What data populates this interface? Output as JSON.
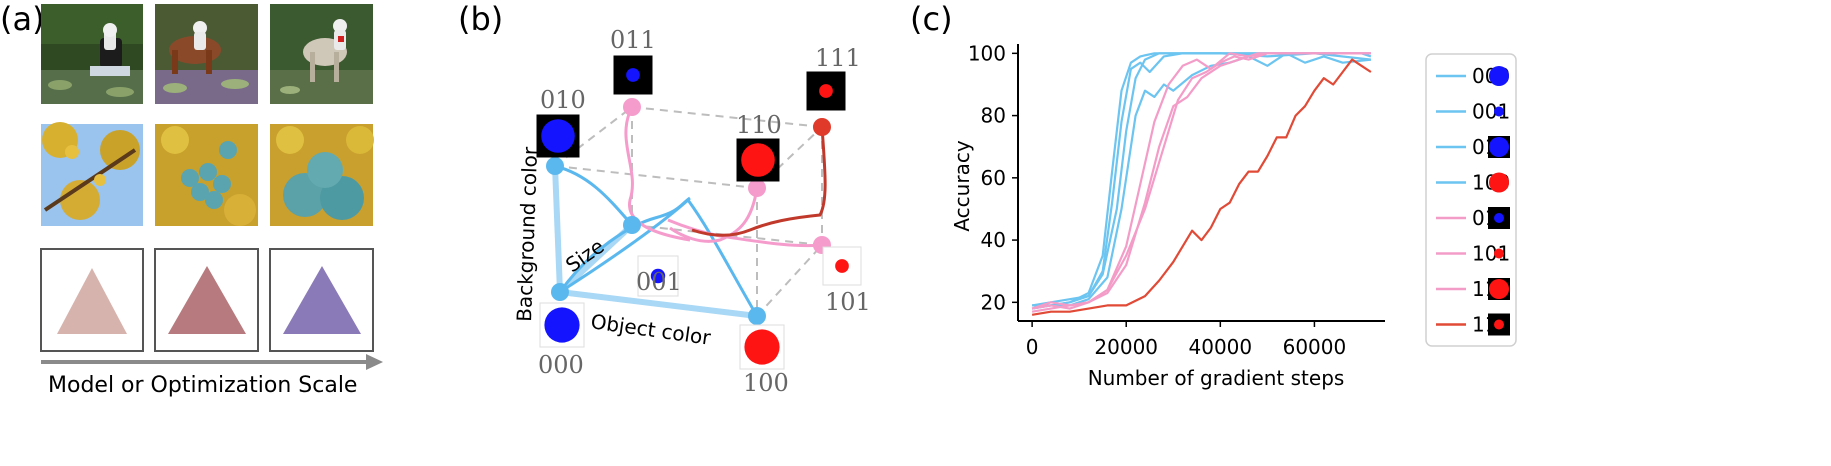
{
  "panels": {
    "a": {
      "label": "(a)",
      "caption": "Model or Optimization Scale",
      "rows": [
        {
          "subject": "astronaut riding horse in pond",
          "colors": [
            "#3c5a2e",
            "#4f6f3a",
            "#5a7a3f"
          ]
        },
        {
          "subject": "blue apples on yellow-leaf tree",
          "colors": [
            "#d9b23a",
            "#c9a23a",
            "#c39a30"
          ]
        },
        {
          "subject": "triangle",
          "colors": [
            "#c99a92",
            "#b77a7e",
            "#8a7ab8"
          ]
        }
      ]
    },
    "b": {
      "label": "(b)",
      "axes": {
        "background": "Background color",
        "size": "Size",
        "object": "Object color"
      },
      "nodes": [
        {
          "code": "000",
          "color": "#5bb8ee",
          "obj": "#1414ff",
          "bg": "#ffffff",
          "big": true
        },
        {
          "code": "001",
          "color": "#5bb8ee",
          "obj": "#1414ff",
          "bg": "#ffffff",
          "big": false
        },
        {
          "code": "010",
          "color": "#5bb8ee",
          "obj": "#1414ff",
          "bg": "#000000",
          "big": true
        },
        {
          "code": "011",
          "color": "#f59ccc",
          "obj": "#1414ff",
          "bg": "#000000",
          "big": false
        },
        {
          "code": "100",
          "color": "#5bb8ee",
          "obj": "#ff1414",
          "bg": "#ffffff",
          "big": true
        },
        {
          "code": "101",
          "color": "#f59ccc",
          "obj": "#ff1414",
          "bg": "#ffffff",
          "big": false
        },
        {
          "code": "110",
          "color": "#f59ccc",
          "obj": "#ff1414",
          "bg": "#000000",
          "big": true
        },
        {
          "code": "111",
          "color": "#e03a2a",
          "obj": "#ff1414",
          "bg": "#000000",
          "big": false
        }
      ]
    },
    "c": {
      "label": "(c)",
      "legend": [
        "000",
        "001",
        "010",
        "100",
        "011",
        "101",
        "110",
        "111"
      ]
    }
  },
  "chart_data": {
    "type": "line",
    "title": "",
    "xlabel": "Number of gradient steps",
    "ylabel": "Accuracy",
    "xlim": [
      -3000,
      75000
    ],
    "ylim": [
      14,
      103
    ],
    "xticks": [
      0,
      20000,
      40000,
      60000
    ],
    "yticks": [
      20,
      40,
      60,
      80,
      100
    ],
    "grid": false,
    "legend_position": "right-outside",
    "series": [
      {
        "name": "000",
        "color": "#6cc4f0",
        "x": [
          0,
          4000,
          8000,
          12000,
          15000,
          17000,
          19000,
          21000,
          23000,
          26000,
          30000,
          40000,
          50000,
          60000,
          70000,
          72000
        ],
        "y": [
          19,
          19,
          20,
          23,
          35,
          62,
          88,
          97,
          99,
          100,
          100,
          100,
          100,
          100,
          100,
          99
        ]
      },
      {
        "name": "001",
        "color": "#6cc4f0",
        "x": [
          0,
          4000,
          8000,
          12000,
          15000,
          17000,
          19000,
          21000,
          23000,
          25000,
          28000,
          32000,
          40000,
          50000,
          60000,
          72000
        ],
        "y": [
          18,
          19,
          20,
          22,
          30,
          52,
          78,
          95,
          97,
          94,
          99,
          100,
          100,
          99,
          100,
          98
        ]
      },
      {
        "name": "010",
        "color": "#6cc4f0",
        "x": [
          0,
          4000,
          8000,
          12000,
          15000,
          18000,
          20000,
          22000,
          24000,
          27000,
          30000,
          40000,
          50000,
          60000,
          72000
        ],
        "y": [
          19,
          20,
          21,
          22,
          29,
          50,
          75,
          92,
          98,
          100,
          100,
          100,
          100,
          100,
          100
        ]
      },
      {
        "name": "100",
        "color": "#6cc4f0",
        "x": [
          0,
          4000,
          8000,
          12000,
          16000,
          19000,
          22000,
          24000,
          26000,
          28000,
          30000,
          34000,
          38000,
          42000,
          46000,
          50000,
          54000,
          58000,
          62000,
          66000,
          72000
        ],
        "y": [
          18,
          19,
          19,
          21,
          28,
          50,
          80,
          88,
          86,
          90,
          88,
          93,
          96,
          97,
          99,
          96,
          100,
          97,
          99,
          97,
          98
        ]
      },
      {
        "name": "011",
        "color": "#f49cc8",
        "x": [
          0,
          4000,
          8000,
          12000,
          16000,
          20000,
          23000,
          26000,
          29000,
          32000,
          35000,
          38000,
          42000,
          46000,
          50000,
          60000,
          72000
        ],
        "y": [
          18,
          20,
          19,
          20,
          24,
          38,
          58,
          78,
          90,
          96,
          98,
          95,
          100,
          99,
          100,
          100,
          100
        ]
      },
      {
        "name": "101",
        "color": "#f49cc8",
        "x": [
          0,
          4000,
          8000,
          12000,
          16000,
          20000,
          24000,
          27000,
          30000,
          33000,
          36000,
          40000,
          44000,
          48000,
          52000,
          60000,
          72000
        ],
        "y": [
          17,
          18,
          19,
          20,
          23,
          32,
          52,
          70,
          83,
          86,
          92,
          96,
          98,
          100,
          100,
          100,
          100
        ]
      },
      {
        "name": "110",
        "color": "#f49cc8",
        "x": [
          0,
          4000,
          8000,
          12000,
          16000,
          20000,
          24000,
          28000,
          31000,
          34000,
          37000,
          40000,
          43000,
          46000,
          50000,
          60000,
          72000
        ],
        "y": [
          18,
          19,
          18,
          20,
          24,
          35,
          50,
          70,
          85,
          92,
          94,
          97,
          99,
          98,
          100,
          100,
          100
        ]
      },
      {
        "name": "111",
        "color": "#e04a36",
        "x": [
          0,
          4000,
          8000,
          12000,
          16000,
          20000,
          24000,
          27000,
          30000,
          32000,
          34000,
          36000,
          38000,
          40000,
          42000,
          44000,
          46000,
          48000,
          50000,
          52000,
          54000,
          56000,
          58000,
          60000,
          62000,
          64000,
          66000,
          68000,
          70000,
          72000
        ],
        "y": [
          16,
          17,
          17,
          18,
          19,
          19,
          22,
          27,
          33,
          38,
          43,
          40,
          44,
          50,
          52,
          58,
          62,
          62,
          67,
          73,
          73,
          80,
          83,
          88,
          92,
          90,
          94,
          98,
          96,
          94
        ]
      }
    ]
  }
}
